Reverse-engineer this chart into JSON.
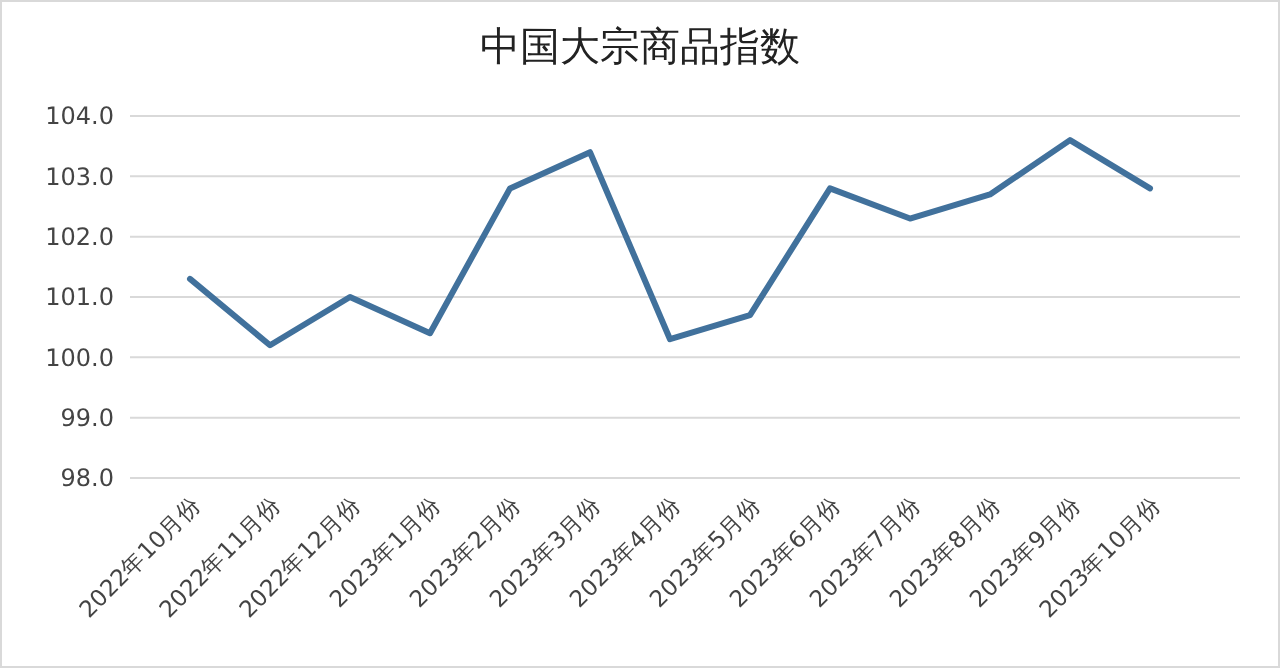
{
  "chart_data": {
    "type": "line",
    "title": "中国大宗商品指数",
    "categories": [
      "2022年10月份",
      "2022年11月份",
      "2022年12月份",
      "2023年1月份",
      "2023年2月份",
      "2023年3月份",
      "2023年4月份",
      "2023年5月份",
      "2023年6月份",
      "2023年7月份",
      "2023年8月份",
      "2023年9月份",
      "2023年10月份"
    ],
    "series": [
      {
        "color": "#41719c",
        "values": [
          101.3,
          100.2,
          101.0,
          100.4,
          102.8,
          103.4,
          100.3,
          100.7,
          102.8,
          102.3,
          102.7,
          103.6,
          102.8
        ]
      }
    ],
    "ylim": [
      98,
      104
    ],
    "yticks": [
      {
        "value": 98,
        "label": "98.0"
      },
      {
        "value": 99,
        "label": "99.0"
      },
      {
        "value": 100,
        "label": "100.0"
      },
      {
        "value": 101,
        "label": "101.0"
      },
      {
        "value": 102,
        "label": "102.0"
      },
      {
        "value": 103,
        "label": "103.0"
      },
      {
        "value": 104,
        "label": "104.0"
      }
    ],
    "grid": "y",
    "marker": "none",
    "line_style": "solid"
  }
}
